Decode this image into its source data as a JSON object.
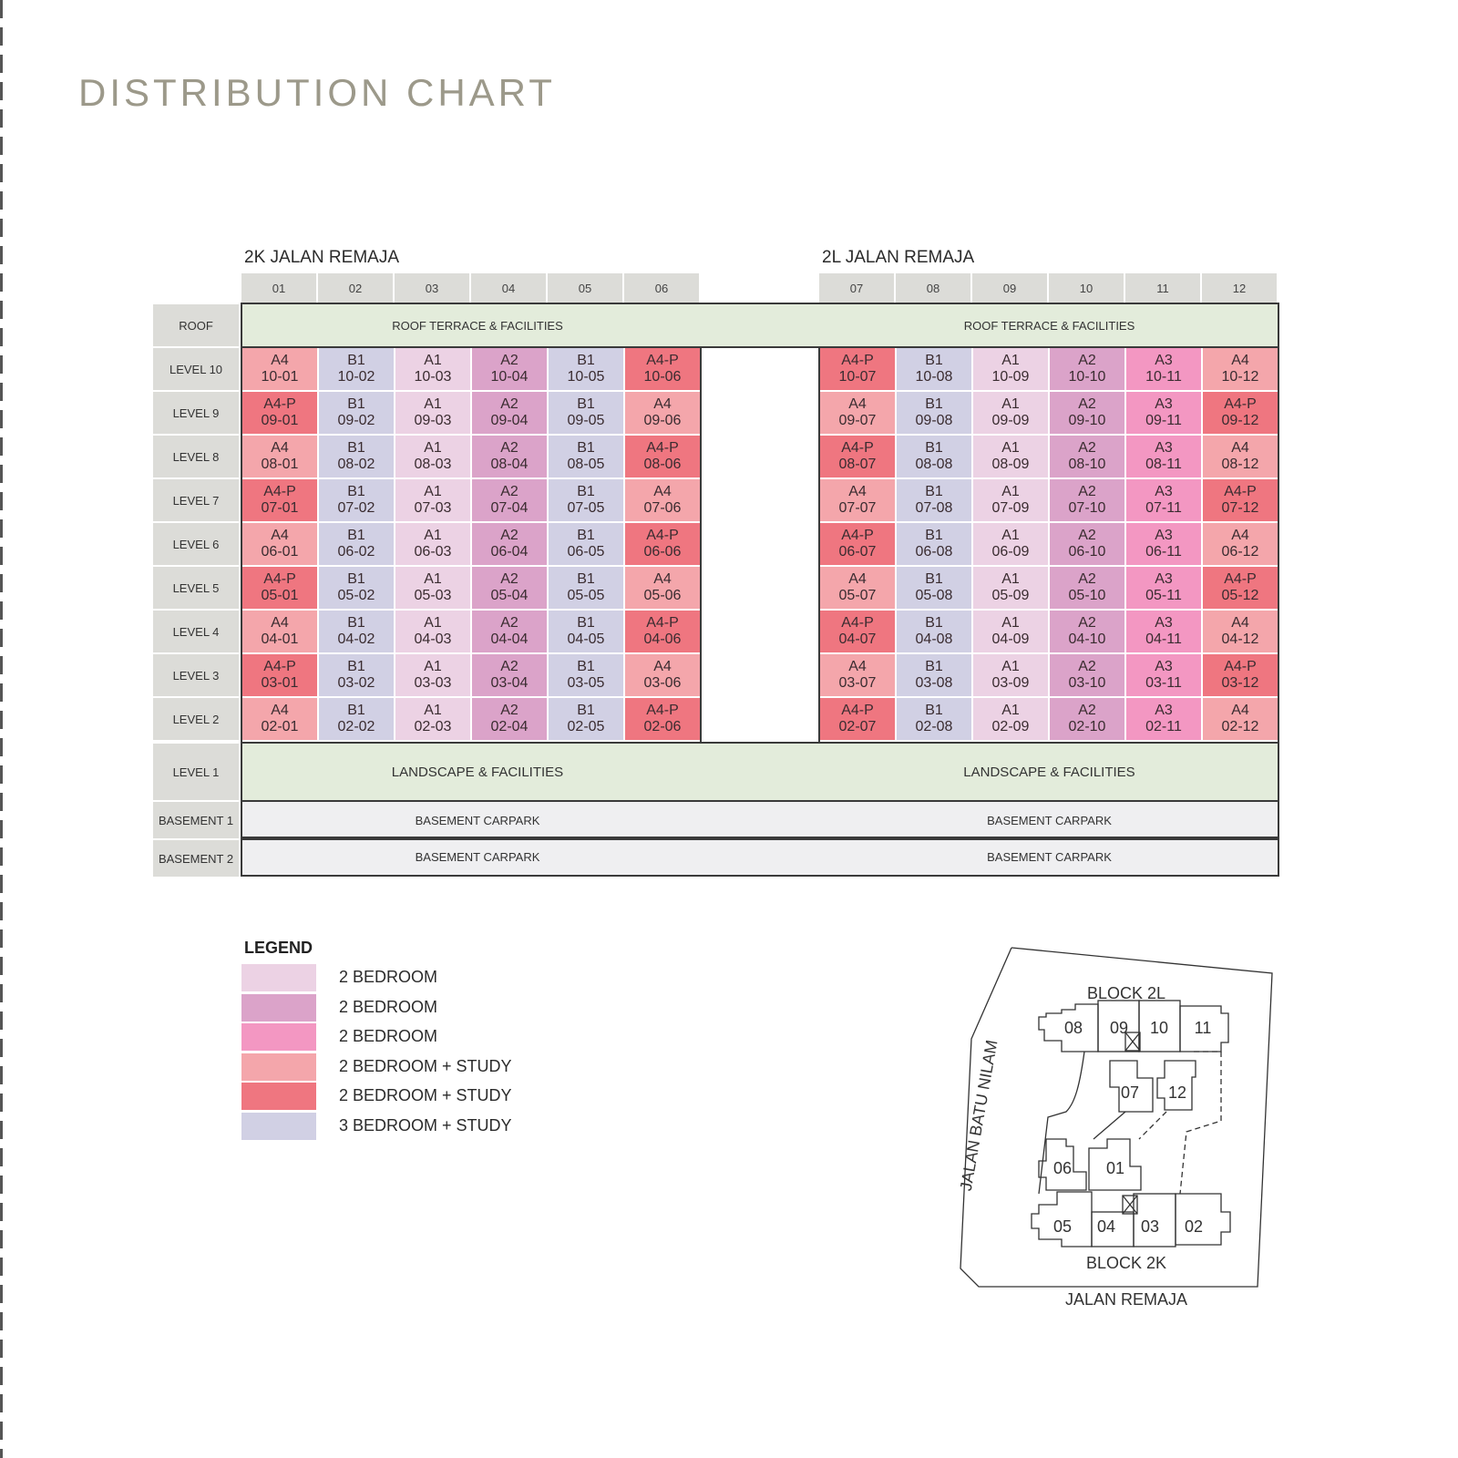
{
  "page_title": "DISTRIBUTION CHART",
  "blocks": [
    {
      "name": "2K JALAN REMAJA",
      "stacks": [
        "01",
        "02",
        "03",
        "04",
        "05",
        "06"
      ]
    },
    {
      "name": "2L JALAN REMAJA",
      "stacks": [
        "07",
        "08",
        "09",
        "10",
        "11",
        "12"
      ]
    }
  ],
  "row_labels": {
    "roof": "ROOF",
    "levels": [
      "LEVEL 10",
      "LEVEL 9",
      "LEVEL 8",
      "LEVEL 7",
      "LEVEL 6",
      "LEVEL 5",
      "LEVEL 4",
      "LEVEL 3",
      "LEVEL 2"
    ],
    "level1": "LEVEL 1",
    "basement1": "BASEMENT 1",
    "basement2": "BASEMENT 2"
  },
  "bands": {
    "roof": "ROOF TERRACE & FACILITIES",
    "level1": "LANDSCAPE & FACILITIES",
    "basement": "BASEMENT CARPARK"
  },
  "colors": {
    "A1": "#ecd2e4",
    "A2": "#dba3c9",
    "A3": "#f397c2",
    "A4": "#f4a6ab",
    "A4-P": "#ef7680",
    "B1": "#d1d0e4",
    "header_grey": "#dcdcd8",
    "green_band": "#e3ecdb",
    "basement_band": "#efeff1",
    "title": "#9c998a"
  },
  "chart_data": {
    "type": "table",
    "title": "DISTRIBUTION CHART",
    "columns": [
      "01",
      "02",
      "03",
      "04",
      "05",
      "06",
      "07",
      "08",
      "09",
      "10",
      "11",
      "12"
    ],
    "rows": [
      {
        "level": "LEVEL 10",
        "units": [
          [
            "A4",
            "10-01"
          ],
          [
            "B1",
            "10-02"
          ],
          [
            "A1",
            "10-03"
          ],
          [
            "A2",
            "10-04"
          ],
          [
            "B1",
            "10-05"
          ],
          [
            "A4-P",
            "10-06"
          ],
          [
            "A4-P",
            "10-07"
          ],
          [
            "B1",
            "10-08"
          ],
          [
            "A1",
            "10-09"
          ],
          [
            "A2",
            "10-10"
          ],
          [
            "A3",
            "10-11"
          ],
          [
            "A4",
            "10-12"
          ]
        ]
      },
      {
        "level": "LEVEL 9",
        "units": [
          [
            "A4-P",
            "09-01"
          ],
          [
            "B1",
            "09-02"
          ],
          [
            "A1",
            "09-03"
          ],
          [
            "A2",
            "09-04"
          ],
          [
            "B1",
            "09-05"
          ],
          [
            "A4",
            "09-06"
          ],
          [
            "A4",
            "09-07"
          ],
          [
            "B1",
            "09-08"
          ],
          [
            "A1",
            "09-09"
          ],
          [
            "A2",
            "09-10"
          ],
          [
            "A3",
            "09-11"
          ],
          [
            "A4-P",
            "09-12"
          ]
        ]
      },
      {
        "level": "LEVEL 8",
        "units": [
          [
            "A4",
            "08-01"
          ],
          [
            "B1",
            "08-02"
          ],
          [
            "A1",
            "08-03"
          ],
          [
            "A2",
            "08-04"
          ],
          [
            "B1",
            "08-05"
          ],
          [
            "A4-P",
            "08-06"
          ],
          [
            "A4-P",
            "08-07"
          ],
          [
            "B1",
            "08-08"
          ],
          [
            "A1",
            "08-09"
          ],
          [
            "A2",
            "08-10"
          ],
          [
            "A3",
            "08-11"
          ],
          [
            "A4",
            "08-12"
          ]
        ]
      },
      {
        "level": "LEVEL 7",
        "units": [
          [
            "A4-P",
            "07-01"
          ],
          [
            "B1",
            "07-02"
          ],
          [
            "A1",
            "07-03"
          ],
          [
            "A2",
            "07-04"
          ],
          [
            "B1",
            "07-05"
          ],
          [
            "A4",
            "07-06"
          ],
          [
            "A4",
            "07-07"
          ],
          [
            "B1",
            "07-08"
          ],
          [
            "A1",
            "07-09"
          ],
          [
            "A2",
            "07-10"
          ],
          [
            "A3",
            "07-11"
          ],
          [
            "A4-P",
            "07-12"
          ]
        ]
      },
      {
        "level": "LEVEL 6",
        "units": [
          [
            "A4",
            "06-01"
          ],
          [
            "B1",
            "06-02"
          ],
          [
            "A1",
            "06-03"
          ],
          [
            "A2",
            "06-04"
          ],
          [
            "B1",
            "06-05"
          ],
          [
            "A4-P",
            "06-06"
          ],
          [
            "A4-P",
            "06-07"
          ],
          [
            "B1",
            "06-08"
          ],
          [
            "A1",
            "06-09"
          ],
          [
            "A2",
            "06-10"
          ],
          [
            "A3",
            "06-11"
          ],
          [
            "A4",
            "06-12"
          ]
        ]
      },
      {
        "level": "LEVEL 5",
        "units": [
          [
            "A4-P",
            "05-01"
          ],
          [
            "B1",
            "05-02"
          ],
          [
            "A1",
            "05-03"
          ],
          [
            "A2",
            "05-04"
          ],
          [
            "B1",
            "05-05"
          ],
          [
            "A4",
            "05-06"
          ],
          [
            "A4",
            "05-07"
          ],
          [
            "B1",
            "05-08"
          ],
          [
            "A1",
            "05-09"
          ],
          [
            "A2",
            "05-10"
          ],
          [
            "A3",
            "05-11"
          ],
          [
            "A4-P",
            "05-12"
          ]
        ]
      },
      {
        "level": "LEVEL 4",
        "units": [
          [
            "A4",
            "04-01"
          ],
          [
            "B1",
            "04-02"
          ],
          [
            "A1",
            "04-03"
          ],
          [
            "A2",
            "04-04"
          ],
          [
            "B1",
            "04-05"
          ],
          [
            "A4-P",
            "04-06"
          ],
          [
            "A4-P",
            "04-07"
          ],
          [
            "B1",
            "04-08"
          ],
          [
            "A1",
            "04-09"
          ],
          [
            "A2",
            "04-10"
          ],
          [
            "A3",
            "04-11"
          ],
          [
            "A4",
            "04-12"
          ]
        ]
      },
      {
        "level": "LEVEL 3",
        "units": [
          [
            "A4-P",
            "03-01"
          ],
          [
            "B1",
            "03-02"
          ],
          [
            "A1",
            "03-03"
          ],
          [
            "A2",
            "03-04"
          ],
          [
            "B1",
            "03-05"
          ],
          [
            "A4",
            "03-06"
          ],
          [
            "A4",
            "03-07"
          ],
          [
            "B1",
            "03-08"
          ],
          [
            "A1",
            "03-09"
          ],
          [
            "A2",
            "03-10"
          ],
          [
            "A3",
            "03-11"
          ],
          [
            "A4-P",
            "03-12"
          ]
        ]
      },
      {
        "level": "LEVEL 2",
        "units": [
          [
            "A4",
            "02-01"
          ],
          [
            "B1",
            "02-02"
          ],
          [
            "A1",
            "02-03"
          ],
          [
            "A2",
            "02-04"
          ],
          [
            "B1",
            "02-05"
          ],
          [
            "A4-P",
            "02-06"
          ],
          [
            "A4-P",
            "02-07"
          ],
          [
            "B1",
            "02-08"
          ],
          [
            "A1",
            "02-09"
          ],
          [
            "A2",
            "02-10"
          ],
          [
            "A3",
            "02-11"
          ],
          [
            "A4",
            "02-12"
          ]
        ]
      }
    ]
  },
  "legend": {
    "title": "LEGEND",
    "items": [
      {
        "type": "A1",
        "label": "2 BEDROOM"
      },
      {
        "type": "A2",
        "label": "2 BEDROOM"
      },
      {
        "type": "A3",
        "label": "2 BEDROOM"
      },
      {
        "type": "A4",
        "label": "2 BEDROOM + STUDY"
      },
      {
        "type": "A4-P",
        "label": "2 BEDROOM + STUDY"
      },
      {
        "type": "B1",
        "label": "3 BEDROOM + STUDY"
      }
    ]
  },
  "site_map": {
    "block_2l_label": "BLOCK 2L",
    "block_2k_label": "BLOCK 2K",
    "road_west": "JALAN BATU NILAM",
    "road_south": "JALAN REMAJA",
    "units": [
      "08",
      "09",
      "10",
      "11",
      "07",
      "12",
      "06",
      "01",
      "05",
      "04",
      "03",
      "02"
    ]
  }
}
